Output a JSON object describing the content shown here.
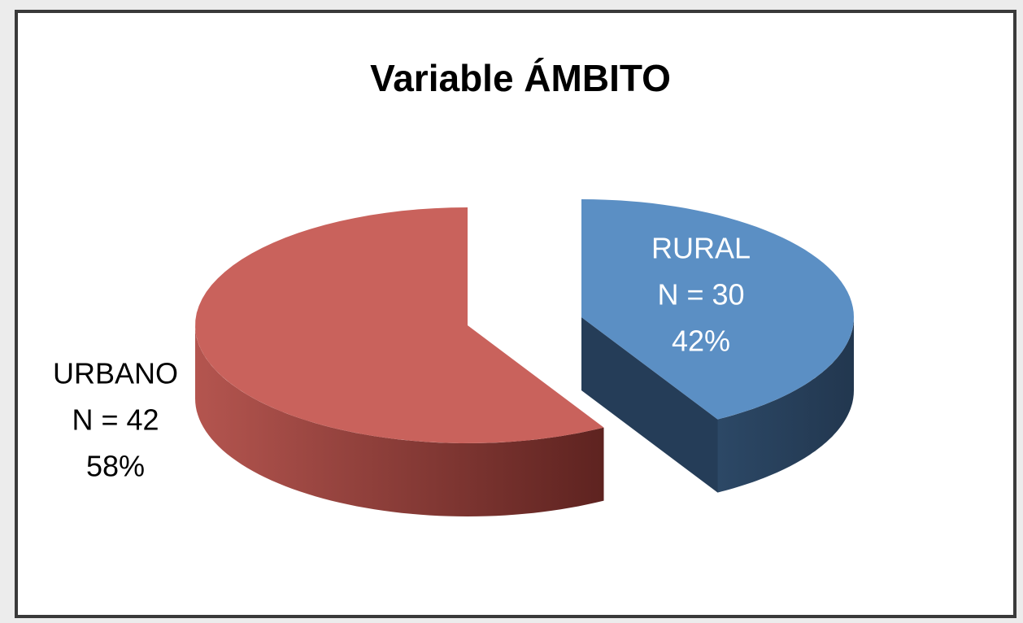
{
  "chart_data": {
    "type": "pie3d",
    "title": "Variable ÁMBITO",
    "categories": [
      "URBANO",
      "RURAL"
    ],
    "values": [
      42,
      30
    ],
    "value_labels": [
      "N = 42",
      "N = 30"
    ],
    "percentages": [
      58,
      42
    ],
    "percentage_labels": [
      "58%",
      "42%"
    ],
    "colors": [
      "#c9625c",
      "#5b8fc4"
    ]
  }
}
